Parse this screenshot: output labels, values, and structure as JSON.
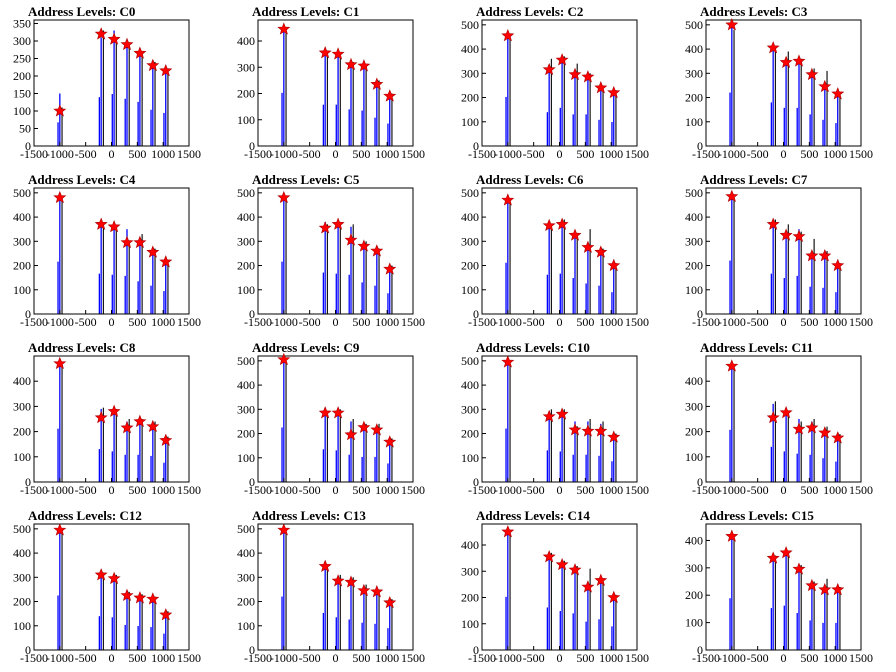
{
  "chart_data": [
    {
      "type": "bar",
      "title": "Address Levels: C0",
      "xlim": [
        -1500,
        1500
      ],
      "xticks": [
        -1500,
        -1000,
        -500,
        0,
        500,
        1000,
        1500
      ],
      "ylim": [
        0,
        360
      ],
      "yticks": [
        0,
        50,
        100,
        150,
        200,
        250,
        300,
        350
      ],
      "x": [
        -1000,
        -200,
        50,
        300,
        550,
        800,
        1050
      ],
      "blue": [
        150,
        310,
        330,
        300,
        280,
        230,
        210
      ],
      "black": [
        110,
        330,
        300,
        280,
        270,
        240,
        220
      ],
      "peaks": [
        100,
        320,
        305,
        290,
        265,
        230,
        215
      ]
    },
    {
      "type": "bar",
      "title": "Address Levels: C1",
      "xlim": [
        -1500,
        1500
      ],
      "xticks": [
        -1500,
        -1000,
        -500,
        0,
        500,
        1000,
        1500
      ],
      "ylim": [
        0,
        480
      ],
      "yticks": [
        0,
        100,
        200,
        300,
        400
      ],
      "x": [
        -1000,
        -200,
        50,
        300,
        550,
        800,
        1050
      ],
      "blue": [
        450,
        350,
        350,
        310,
        300,
        240,
        190
      ],
      "black": [
        440,
        360,
        340,
        320,
        310,
        250,
        200
      ],
      "peaks": [
        445,
        355,
        350,
        310,
        305,
        235,
        190
      ]
    },
    {
      "type": "bar",
      "title": "Address Levels: C2",
      "xlim": [
        -1500,
        1500
      ],
      "xticks": [
        -1500,
        -1000,
        -500,
        0,
        500,
        1000,
        1500
      ],
      "ylim": [
        0,
        520
      ],
      "yticks": [
        0,
        100,
        200,
        300,
        400,
        500
      ],
      "x": [
        -1000,
        -200,
        50,
        300,
        550,
        800,
        1050
      ],
      "blue": [
        450,
        310,
        350,
        290,
        290,
        240,
        220
      ],
      "black": [
        440,
        360,
        370,
        340,
        300,
        250,
        230
      ],
      "peaks": [
        455,
        315,
        355,
        295,
        285,
        240,
        220
      ]
    },
    {
      "type": "bar",
      "title": "Address Levels: C3",
      "xlim": [
        -1500,
        1500
      ],
      "xticks": [
        -1500,
        -1000,
        -500,
        0,
        500,
        1000,
        1500
      ],
      "ylim": [
        0,
        520
      ],
      "yticks": [
        0,
        100,
        200,
        300,
        400,
        500
      ],
      "x": [
        -1000,
        -200,
        50,
        300,
        550,
        800,
        1050
      ],
      "blue": [
        490,
        400,
        350,
        350,
        290,
        240,
        210
      ],
      "black": [
        480,
        410,
        390,
        360,
        320,
        310,
        220
      ],
      "peaks": [
        500,
        405,
        345,
        350,
        295,
        245,
        215
      ]
    },
    {
      "type": "bar",
      "title": "Address Levels: C4",
      "xlim": [
        -1500,
        1500
      ],
      "xticks": [
        -1500,
        -1000,
        -500,
        0,
        500,
        1000,
        1500
      ],
      "ylim": [
        0,
        520
      ],
      "yticks": [
        0,
        100,
        200,
        300,
        400,
        500
      ],
      "x": [
        -1000,
        -200,
        50,
        300,
        550,
        800,
        1050
      ],
      "blue": [
        480,
        370,
        360,
        350,
        300,
        260,
        210
      ],
      "black": [
        470,
        375,
        365,
        300,
        330,
        270,
        220
      ],
      "peaks": [
        480,
        370,
        360,
        295,
        295,
        255,
        215
      ]
    },
    {
      "type": "bar",
      "title": "Address Levels: C5",
      "xlim": [
        -1500,
        1500
      ],
      "xticks": [
        -1500,
        -1000,
        -500,
        0,
        500,
        1000,
        1500
      ],
      "ylim": [
        0,
        520
      ],
      "yticks": [
        0,
        100,
        200,
        300,
        400,
        500
      ],
      "x": [
        -1000,
        -200,
        50,
        300,
        550,
        800,
        1050
      ],
      "blue": [
        480,
        380,
        370,
        360,
        290,
        260,
        190
      ],
      "black": [
        475,
        370,
        380,
        370,
        300,
        270,
        200
      ],
      "peaks": [
        480,
        355,
        370,
        305,
        280,
        260,
        185
      ]
    },
    {
      "type": "bar",
      "title": "Address Levels: C6",
      "xlim": [
        -1500,
        1500
      ],
      "xticks": [
        -1500,
        -1000,
        -500,
        0,
        500,
        1000,
        1500
      ],
      "ylim": [
        0,
        520
      ],
      "yticks": [
        0,
        100,
        200,
        300,
        400,
        500
      ],
      "x": [
        -1000,
        -200,
        50,
        300,
        550,
        800,
        1050
      ],
      "blue": [
        470,
        360,
        370,
        330,
        280,
        260,
        200
      ],
      "black": [
        465,
        370,
        390,
        320,
        350,
        270,
        210
      ],
      "peaks": [
        470,
        365,
        370,
        325,
        275,
        255,
        200
      ]
    },
    {
      "type": "bar",
      "title": "Address Levels: C7",
      "xlim": [
        -1500,
        1500
      ],
      "xticks": [
        -1500,
        -1000,
        -500,
        0,
        500,
        1000,
        1500
      ],
      "ylim": [
        0,
        520
      ],
      "yticks": [
        0,
        100,
        200,
        300,
        400,
        500
      ],
      "x": [
        -1000,
        -200,
        50,
        300,
        550,
        800,
        1050
      ],
      "blue": [
        490,
        370,
        330,
        350,
        250,
        240,
        200
      ],
      "black": [
        480,
        390,
        370,
        340,
        310,
        260,
        210
      ],
      "peaks": [
        485,
        370,
        325,
        320,
        240,
        240,
        200
      ]
    },
    {
      "type": "bar",
      "title": "Address Levels: C8",
      "xlim": [
        -1500,
        1500
      ],
      "xticks": [
        -1500,
        -1000,
        -500,
        0,
        500,
        1000,
        1500
      ],
      "ylim": [
        0,
        500
      ],
      "yticks": [
        0,
        100,
        200,
        300,
        400
      ],
      "x": [
        -1000,
        -200,
        50,
        300,
        550,
        800,
        1050
      ],
      "blue": [
        470,
        290,
        270,
        240,
        240,
        230,
        170
      ],
      "black": [
        465,
        295,
        290,
        250,
        250,
        240,
        180
      ],
      "peaks": [
        470,
        255,
        280,
        215,
        240,
        220,
        165
      ]
    },
    {
      "type": "bar",
      "title": "Address Levels: C9",
      "xlim": [
        -1500,
        1500
      ],
      "xticks": [
        -1500,
        -1000,
        -500,
        0,
        500,
        1000,
        1500
      ],
      "ylim": [
        0,
        520
      ],
      "yticks": [
        0,
        100,
        200,
        300,
        400,
        500
      ],
      "x": [
        -1000,
        -200,
        50,
        300,
        550,
        800,
        1050
      ],
      "blue": [
        500,
        300,
        290,
        250,
        230,
        230,
        170
      ],
      "black": [
        495,
        290,
        300,
        260,
        240,
        240,
        180
      ],
      "peaks": [
        505,
        285,
        285,
        195,
        225,
        215,
        165
      ]
    },
    {
      "type": "bar",
      "title": "Address Levels: C10",
      "xlim": [
        -1500,
        1500
      ],
      "xticks": [
        -1500,
        -1000,
        -500,
        0,
        500,
        1000,
        1500
      ],
      "ylim": [
        0,
        520
      ],
      "yticks": [
        0,
        100,
        200,
        300,
        400,
        500
      ],
      "x": [
        -1000,
        -200,
        50,
        300,
        550,
        800,
        1050
      ],
      "blue": [
        490,
        290,
        280,
        250,
        250,
        240,
        190
      ],
      "black": [
        485,
        300,
        300,
        230,
        260,
        250,
        200
      ],
      "peaks": [
        495,
        270,
        280,
        215,
        210,
        210,
        185
      ]
    },
    {
      "type": "bar",
      "title": "Address Levels: C11",
      "xlim": [
        -1500,
        1500
      ],
      "xticks": [
        -1500,
        -1000,
        -500,
        0,
        500,
        1000,
        1500
      ],
      "ylim": [
        0,
        500
      ],
      "yticks": [
        0,
        100,
        200,
        300,
        400
      ],
      "x": [
        -1000,
        -200,
        50,
        300,
        550,
        800,
        1050
      ],
      "blue": [
        460,
        310,
        270,
        250,
        240,
        210,
        180
      ],
      "black": [
        455,
        320,
        280,
        240,
        250,
        220,
        190
      ],
      "peaks": [
        460,
        255,
        275,
        210,
        215,
        195,
        175
      ]
    },
    {
      "type": "bar",
      "title": "Address Levels: C12",
      "xlim": [
        -1500,
        1500
      ],
      "xticks": [
        -1500,
        -1000,
        -500,
        0,
        500,
        1000,
        1500
      ],
      "ylim": [
        0,
        520
      ],
      "yticks": [
        0,
        100,
        200,
        300,
        400,
        500
      ],
      "x": [
        -1000,
        -200,
        50,
        300,
        550,
        800,
        1050
      ],
      "blue": [
        500,
        310,
        300,
        230,
        220,
        210,
        150
      ],
      "black": [
        495,
        320,
        310,
        240,
        230,
        220,
        160
      ],
      "peaks": [
        495,
        310,
        295,
        225,
        215,
        210,
        145
      ]
    },
    {
      "type": "bar",
      "title": "Address Levels: C13",
      "xlim": [
        -1500,
        1500
      ],
      "xticks": [
        -1500,
        -1000,
        -500,
        0,
        500,
        1000,
        1500
      ],
      "ylim": [
        0,
        520
      ],
      "yticks": [
        0,
        100,
        200,
        300,
        400,
        500
      ],
      "x": [
        -1000,
        -200,
        50,
        300,
        550,
        800,
        1050
      ],
      "blue": [
        490,
        340,
        300,
        280,
        250,
        240,
        200
      ],
      "black": [
        485,
        350,
        310,
        300,
        270,
        250,
        210
      ],
      "peaks": [
        495,
        345,
        285,
        280,
        245,
        240,
        195
      ]
    },
    {
      "type": "bar",
      "title": "Address Levels: C14",
      "xlim": [
        -1500,
        1500
      ],
      "xticks": [
        -1500,
        -1000,
        -500,
        0,
        500,
        1000,
        1500
      ],
      "ylim": [
        0,
        480
      ],
      "yticks": [
        0,
        100,
        200,
        300,
        400
      ],
      "x": [
        -1000,
        -200,
        50,
        300,
        550,
        800,
        1050
      ],
      "blue": [
        450,
        360,
        330,
        310,
        240,
        260,
        200
      ],
      "black": [
        445,
        370,
        340,
        320,
        310,
        270,
        210
      ],
      "peaks": [
        450,
        355,
        325,
        305,
        240,
        265,
        200
      ]
    },
    {
      "type": "bar",
      "title": "Address Levels: C15",
      "xlim": [
        -1500,
        1500
      ],
      "xticks": [
        -1500,
        -1000,
        -500,
        0,
        500,
        1000,
        1500
      ],
      "ylim": [
        0,
        460
      ],
      "yticks": [
        0,
        100,
        200,
        300,
        400
      ],
      "x": [
        -1000,
        -200,
        50,
        300,
        550,
        800,
        1050
      ],
      "blue": [
        420,
        340,
        360,
        300,
        240,
        220,
        220
      ],
      "black": [
        410,
        345,
        350,
        310,
        250,
        260,
        230
      ],
      "peaks": [
        415,
        335,
        355,
        295,
        235,
        220,
        220
      ]
    }
  ]
}
